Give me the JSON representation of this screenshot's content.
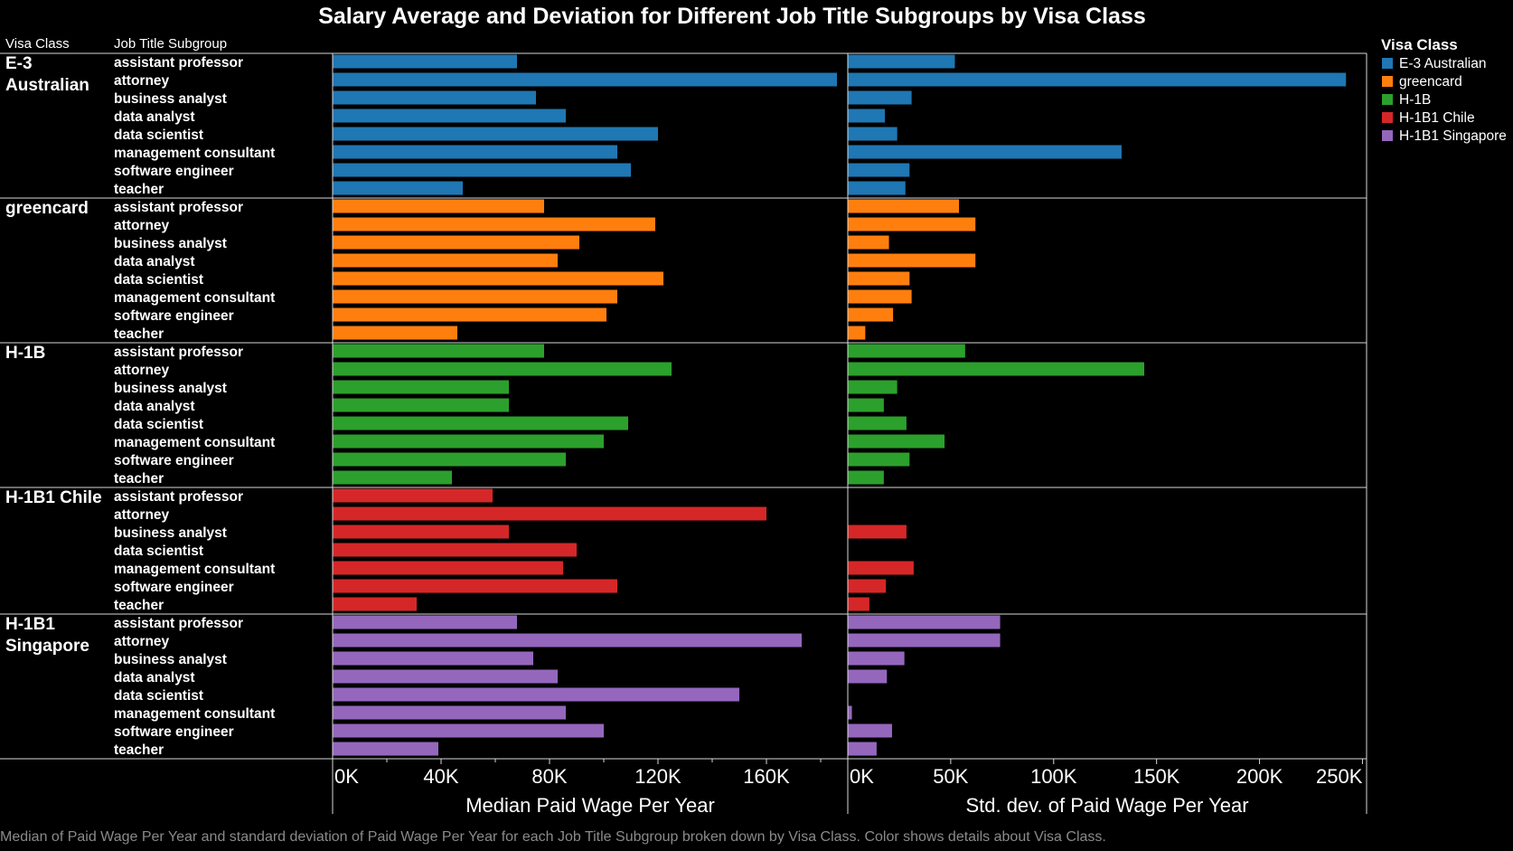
{
  "title": "Salary Average and Deviation for Different Job Title Subgroups by Visa Class",
  "caption": "Median of Paid Wage Per Year and standard deviation of Paid Wage Per Year for each Job Title Subgroup broken down by Visa Class.  Color shows details about Visa Class.",
  "headers": {
    "group": "Visa Class",
    "subgroup": "Job Title Subgroup"
  },
  "legend": {
    "title": "Visa Class",
    "items": [
      {
        "label": "E-3 Australian",
        "color": "#1f77b4"
      },
      {
        "label": "greencard",
        "color": "#ff7f0e"
      },
      {
        "label": "H-1B",
        "color": "#2ca02c"
      },
      {
        "label": "H-1B1 Chile",
        "color": "#d62728"
      },
      {
        "label": "H-1B1 Singapore",
        "color": "#9467bd"
      }
    ]
  },
  "chart_data": [
    {
      "type": "bar",
      "orientation": "horizontal",
      "xlabel": "Median Paid Wage Per Year",
      "xlim": [
        0,
        190000
      ],
      "ticks": [
        "0K",
        "40K",
        "80K",
        "120K",
        "160K"
      ],
      "tick_values": [
        0,
        40000,
        80000,
        120000,
        160000
      ],
      "groups": [
        {
          "name": "E-3 Australian",
          "label_lines": [
            "E-3",
            "Australian"
          ],
          "color": "#1f77b4",
          "categories": [
            "assistant professor",
            "attorney",
            "business analyst",
            "data analyst",
            "data scientist",
            "management consultant",
            "software engineer",
            "teacher"
          ],
          "values": [
            68000,
            186000,
            75000,
            86000,
            120000,
            105000,
            110000,
            48000
          ]
        },
        {
          "name": "greencard",
          "label_lines": [
            "greencard"
          ],
          "color": "#ff7f0e",
          "categories": [
            "assistant professor",
            "attorney",
            "business analyst",
            "data analyst",
            "data scientist",
            "management consultant",
            "software engineer",
            "teacher"
          ],
          "values": [
            78000,
            119000,
            91000,
            83000,
            122000,
            105000,
            101000,
            46000
          ]
        },
        {
          "name": "H-1B",
          "label_lines": [
            "H-1B"
          ],
          "color": "#2ca02c",
          "categories": [
            "assistant professor",
            "attorney",
            "business analyst",
            "data analyst",
            "data scientist",
            "management consultant",
            "software engineer",
            "teacher"
          ],
          "values": [
            78000,
            125000,
            65000,
            65000,
            109000,
            100000,
            86000,
            44000
          ]
        },
        {
          "name": "H-1B1 Chile",
          "label_lines": [
            "H-1B1 Chile"
          ],
          "color": "#d62728",
          "categories": [
            "assistant professor",
            "attorney",
            "business analyst",
            "data scientist",
            "management consultant",
            "software engineer",
            "teacher"
          ],
          "values": [
            59000,
            160000,
            65000,
            90000,
            85000,
            105000,
            31000
          ]
        },
        {
          "name": "H-1B1 Singapore",
          "label_lines": [
            "H-1B1",
            "Singapore"
          ],
          "color": "#9467bd",
          "categories": [
            "assistant professor",
            "attorney",
            "business analyst",
            "data analyst",
            "data scientist",
            "management consultant",
            "software engineer",
            "teacher"
          ],
          "values": [
            68000,
            173000,
            74000,
            83000,
            150000,
            86000,
            100000,
            39000
          ]
        }
      ]
    },
    {
      "type": "bar",
      "orientation": "horizontal",
      "xlabel": "Std. dev. of Paid Wage Per Year",
      "xlim": [
        0,
        252000
      ],
      "ticks": [
        "0K",
        "50K",
        "100K",
        "150K",
        "200K",
        "250K"
      ],
      "tick_values": [
        0,
        50000,
        100000,
        150000,
        200000,
        250000
      ],
      "groups": [
        {
          "name": "E-3 Australian",
          "values": [
            52000,
            242000,
            31000,
            18000,
            24000,
            133000,
            30000,
            28000
          ]
        },
        {
          "name": "greencard",
          "values": [
            54000,
            62000,
            20000,
            62000,
            30000,
            31000,
            22000,
            8500
          ]
        },
        {
          "name": "H-1B",
          "values": [
            57000,
            144000,
            24000,
            17500,
            28500,
            47000,
            30000,
            17500
          ]
        },
        {
          "name": "H-1B1 Chile",
          "values": [
            null,
            null,
            28500,
            null,
            32000,
            18500,
            10500
          ]
        },
        {
          "name": "H-1B1 Singapore",
          "values": [
            74000,
            74000,
            27500,
            19000,
            0,
            2000,
            21500,
            14000
          ]
        }
      ]
    }
  ]
}
